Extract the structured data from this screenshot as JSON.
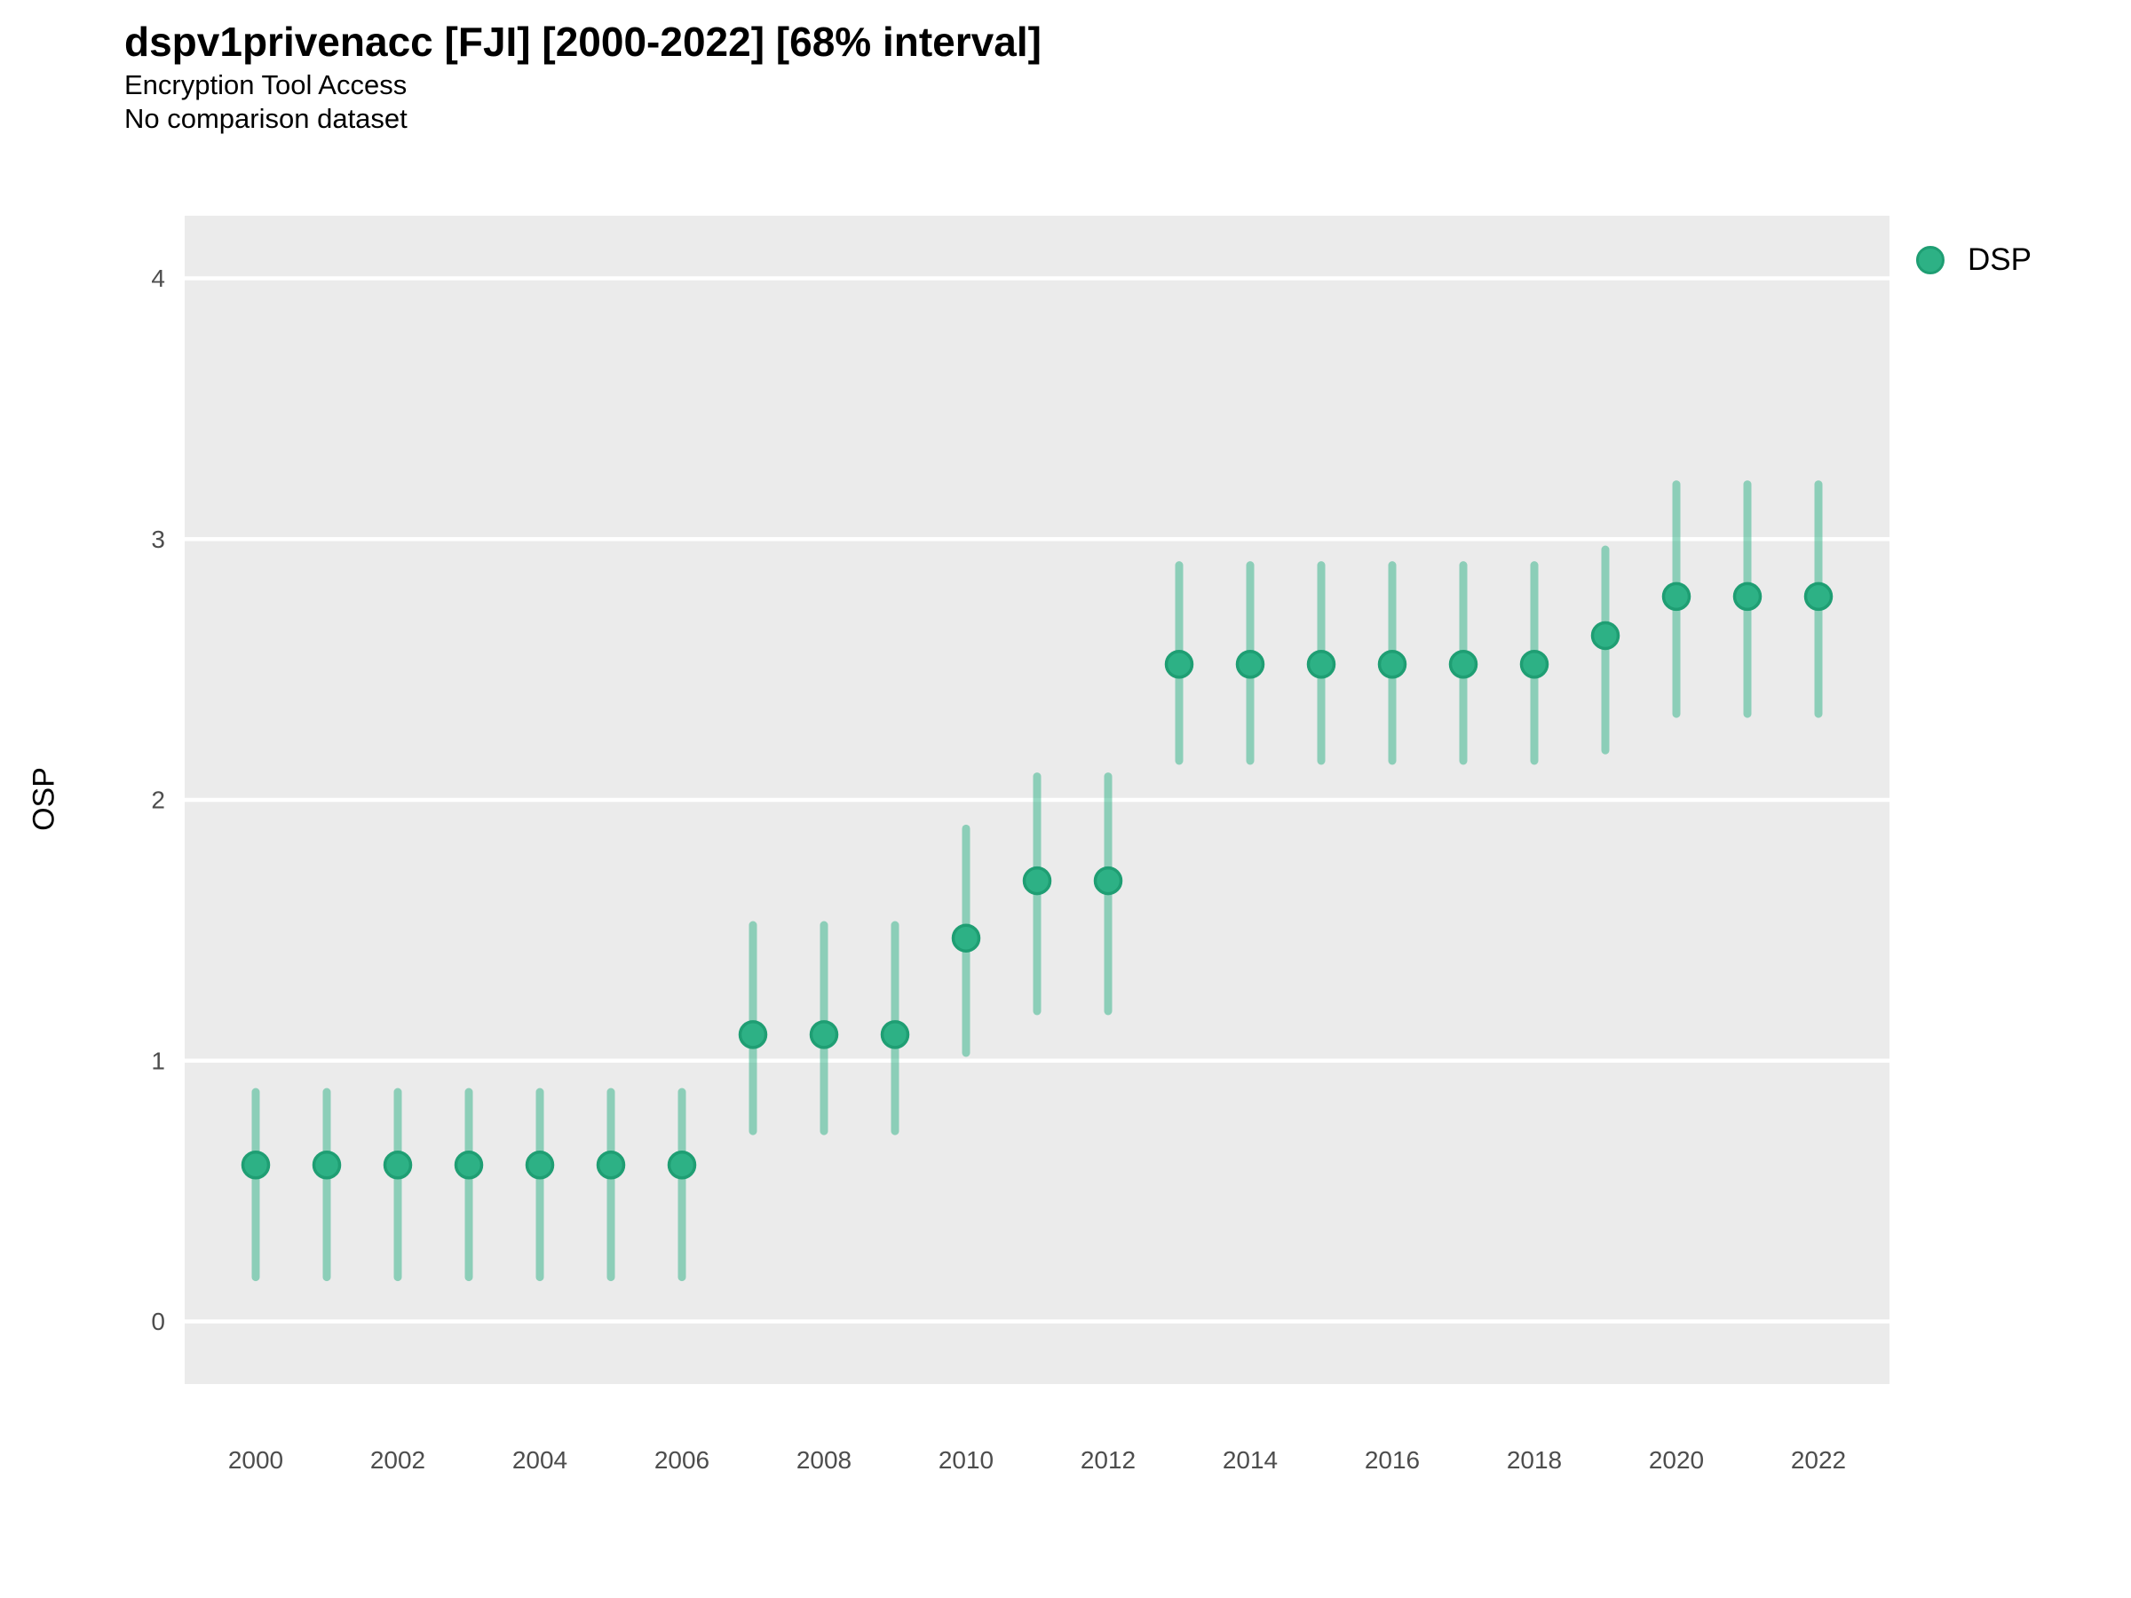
{
  "header": {
    "title": "dspv1privenacc [FJI] [2000-2022] [68% interval]",
    "subtitle1": "Encryption Tool Access",
    "subtitle2": "No comparison dataset"
  },
  "legend": {
    "position": "right-top",
    "items": [
      {
        "label": "DSP",
        "swatch": "circle"
      }
    ]
  },
  "axes": {
    "y_label": "OSP",
    "y_tick_labels": [
      "0",
      "1",
      "2",
      "3",
      "4"
    ],
    "y_tick_values": [
      0,
      1,
      2,
      3,
      4
    ],
    "x_tick_labels": [
      "2000",
      "2002",
      "2004",
      "2006",
      "2008",
      "2010",
      "2012",
      "2014",
      "2016",
      "2018",
      "2020",
      "2022"
    ],
    "x_tick_values": [
      2000,
      2002,
      2004,
      2006,
      2008,
      2010,
      2012,
      2014,
      2016,
      2018,
      2020,
      2022
    ]
  },
  "colors": {
    "point_fill": "#2db185",
    "point_stroke": "#1f9e73",
    "interval_line": "rgba(45, 177, 133, 0.5)",
    "panel_background": "#ebebeb",
    "gridline": "#ffffff",
    "tick_label": "#4d4d4d",
    "text": "#000000"
  },
  "chart_data": {
    "type": "scatter",
    "style": "pointrange-vertical-interval",
    "title": "dspv1privenacc [FJI] [2000-2022] [68% interval]",
    "subtitle": "Encryption Tool Access",
    "caption": "No comparison dataset",
    "interval_level": "68% interval",
    "xlabel": "",
    "ylabel": "OSP",
    "xlim": [
      1999,
      2023
    ],
    "ylim": [
      -0.24,
      4.24
    ],
    "grid": "horizontal-major-only",
    "legend_position": "right-top",
    "x": [
      2000,
      2001,
      2002,
      2003,
      2004,
      2005,
      2006,
      2007,
      2008,
      2009,
      2010,
      2011,
      2012,
      2013,
      2014,
      2015,
      2016,
      2017,
      2018,
      2019,
      2020,
      2021,
      2022
    ],
    "series": [
      {
        "name": "DSP",
        "values": [
          0.6,
          0.6,
          0.6,
          0.6,
          0.6,
          0.6,
          0.6,
          1.1,
          1.1,
          1.1,
          1.47,
          1.69,
          1.69,
          2.52,
          2.52,
          2.52,
          2.52,
          2.52,
          2.52,
          2.63,
          2.78,
          2.78,
          2.78
        ],
        "lower": [
          0.17,
          0.17,
          0.17,
          0.17,
          0.17,
          0.17,
          0.17,
          0.73,
          0.73,
          0.73,
          1.03,
          1.19,
          1.19,
          2.15,
          2.15,
          2.15,
          2.15,
          2.15,
          2.15,
          2.19,
          2.33,
          2.33,
          2.33
        ],
        "upper": [
          0.88,
          0.88,
          0.88,
          0.88,
          0.88,
          0.88,
          0.88,
          1.52,
          1.52,
          1.52,
          1.89,
          2.09,
          2.09,
          2.9,
          2.9,
          2.9,
          2.9,
          2.9,
          2.9,
          2.96,
          3.21,
          3.21,
          3.21
        ]
      }
    ]
  }
}
